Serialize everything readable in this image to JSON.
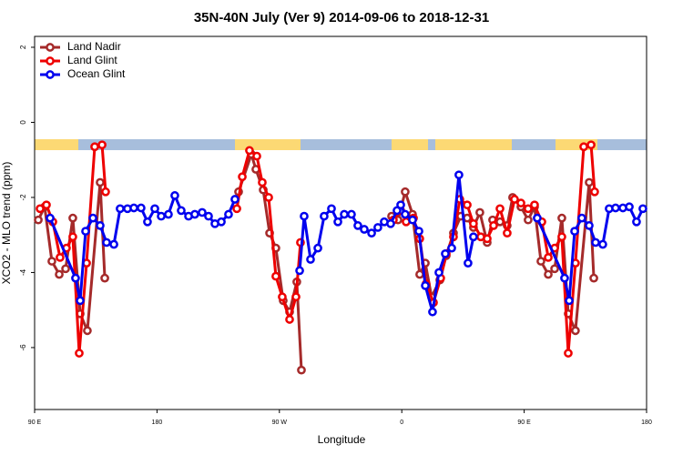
{
  "chart_data": {
    "type": "line",
    "title": "35N-40N July (Ver 9)   2014-09-06 to 2018-12-31",
    "xlabel": "Longitude",
    "ylabel": "XCO2 - MLO trend (ppm)",
    "xlim": [
      90,
      540
    ],
    "xticks": [
      {
        "value": 90,
        "label": "90 E"
      },
      {
        "value": 180,
        "label": "180"
      },
      {
        "value": 270,
        "label": "90 W"
      },
      {
        "value": 360,
        "label": "0"
      },
      {
        "value": 450,
        "label": "90 E"
      },
      {
        "value": 540,
        "label": "180"
      }
    ],
    "ylim": [
      -7.65,
      2.29
    ],
    "yticks": [
      2,
      0,
      -2,
      -4,
      -6
    ],
    "legend": "top-left",
    "series": [
      {
        "name": "Land Nadir",
        "color": "#a52a2a",
        "x": [
          92.7,
          97.4,
          102.7,
          108.1,
          112.8,
          118.1,
          123.5,
          128.8,
          138.2,
          141.6,
          null,
          240.0,
          249.4,
          252.7,
          258.1,
          262.8,
          267.4,
          272.8,
          277.5,
          282.8,
          286.2,
          null,
          352.5,
          357.2,
          362.5,
          367.9,
          373.2,
          377.3,
          381.9,
          388.0,
          392.7,
          398.0,
          403.4,
          408.1,
          412.7,
          417.4,
          422.8,
          426.8,
          432.2,
          437.5,
          441.5,
          447.6,
          452.9,
          457.6,
          462.3,
          467.7,
          472.4,
          477.7,
          482.4,
          487.7,
          497.8,
          501.2
        ],
        "values": [
          -2.6,
          -2.25,
          -3.7,
          -4.05,
          -3.9,
          -2.55,
          -5.1,
          -5.55,
          -1.6,
          -4.15,
          null,
          -1.85,
          -0.85,
          -1.25,
          -1.8,
          -2.95,
          -3.35,
          -4.75,
          -5.05,
          -4.25,
          -6.6,
          null,
          -2.5,
          -2.6,
          -1.85,
          -2.45,
          -4.05,
          -3.75,
          -4.65,
          -4.2,
          -3.55,
          -2.95,
          -2.5,
          -2.55,
          -2.8,
          -2.4,
          -3.2,
          -2.6,
          -2.65,
          -2.75,
          -2.0,
          -2.25,
          -2.6,
          -2.25,
          -3.7,
          -4.05,
          -3.9,
          -2.55,
          -5.1,
          -5.55,
          -1.6,
          -4.15
        ]
      },
      {
        "name": "Land Glint",
        "color": "#ee0000",
        "x": [
          94.0,
          98.7,
          103.4,
          108.7,
          113.4,
          118.1,
          122.8,
          128.2,
          134.2,
          139.6,
          142.2,
          null,
          238.7,
          242.7,
          248.0,
          253.4,
          257.4,
          262.1,
          267.4,
          272.1,
          277.5,
          282.2,
          285.5,
          null,
          353.8,
          359.2,
          363.2,
          368.6,
          373.2,
          377.9,
          383.3,
          388.6,
          392.7,
          398.0,
          402.7,
          408.1,
          412.7,
          418.1,
          422.8,
          427.5,
          432.2,
          437.5,
          442.9,
          447.6,
          452.9,
          457.6,
          463.0,
          467.7,
          472.4,
          477.7,
          482.4,
          487.7,
          493.8,
          499.2,
          501.8
        ],
        "values": [
          -2.3,
          -2.2,
          -2.65,
          -3.6,
          -3.35,
          -3.05,
          -6.15,
          -3.75,
          -0.65,
          -0.6,
          -1.85,
          null,
          -2.3,
          -1.45,
          -0.75,
          -0.9,
          -1.6,
          -2.0,
          -4.1,
          -4.65,
          -5.25,
          -4.65,
          -3.2,
          null,
          -2.6,
          -2.35,
          -2.65,
          -2.55,
          -3.1,
          -4.3,
          -4.8,
          -4.15,
          -3.5,
          -3.05,
          -2.05,
          -2.2,
          -2.7,
          -3.05,
          -3.1,
          -2.75,
          -2.3,
          -2.95,
          -2.05,
          -2.15,
          -2.3,
          -2.2,
          -2.65,
          -3.6,
          -3.35,
          -3.05,
          -6.15,
          -3.75,
          -0.65,
          -0.6,
          -1.85
        ]
      },
      {
        "name": "Ocean Glint",
        "color": "#0000ee",
        "x": [
          101.4,
          120.1,
          123.5,
          127.5,
          132.9,
          138.2,
          142.9,
          148.3,
          152.9,
          158.3,
          163.0,
          168.3,
          173.0,
          178.4,
          183.1,
          188.4,
          193.1,
          197.8,
          203.2,
          207.8,
          213.2,
          217.9,
          222.6,
          227.3,
          232.6,
          237.3,
          null,
          284.9,
          288.2,
          292.9,
          298.3,
          302.9,
          308.3,
          313.0,
          317.7,
          323.0,
          327.7,
          332.4,
          337.8,
          342.4,
          347.1,
          351.8,
          356.5,
          359.2,
          362.5,
          367.9,
          372.6,
          377.3,
          382.6,
          387.3,
          392.0,
          396.7,
          402.0,
          408.7,
          412.7,
          null,
          459.6,
          479.7,
          483.1,
          487.1,
          492.4,
          497.8,
          502.5,
          507.8,
          512.5,
          517.2,
          522.6,
          527.3,
          532.6,
          537.3
        ],
        "values": [
          -2.55,
          -4.15,
          -4.75,
          -2.9,
          -2.55,
          -2.75,
          -3.2,
          -3.25,
          -2.3,
          -2.3,
          -2.28,
          -2.28,
          -2.65,
          -2.3,
          -2.5,
          -2.45,
          -1.95,
          -2.35,
          -2.5,
          -2.45,
          -2.4,
          -2.5,
          -2.7,
          -2.65,
          -2.45,
          -2.05,
          null,
          -3.95,
          -2.5,
          -3.65,
          -3.35,
          -2.5,
          -2.3,
          -2.65,
          -2.45,
          -2.45,
          -2.75,
          -2.85,
          -2.95,
          -2.8,
          -2.65,
          -2.7,
          -2.35,
          -2.2,
          -2.45,
          -2.6,
          -2.9,
          -4.35,
          -5.05,
          -4.0,
          -3.5,
          -3.35,
          -1.4,
          -3.75,
          -3.05,
          null,
          -2.55,
          -4.15,
          -4.75,
          -2.9,
          -2.55,
          -2.75,
          -3.2,
          -3.25,
          -2.3,
          -2.28,
          -2.28,
          -2.25,
          -2.65,
          -2.3
        ]
      }
    ]
  }
}
